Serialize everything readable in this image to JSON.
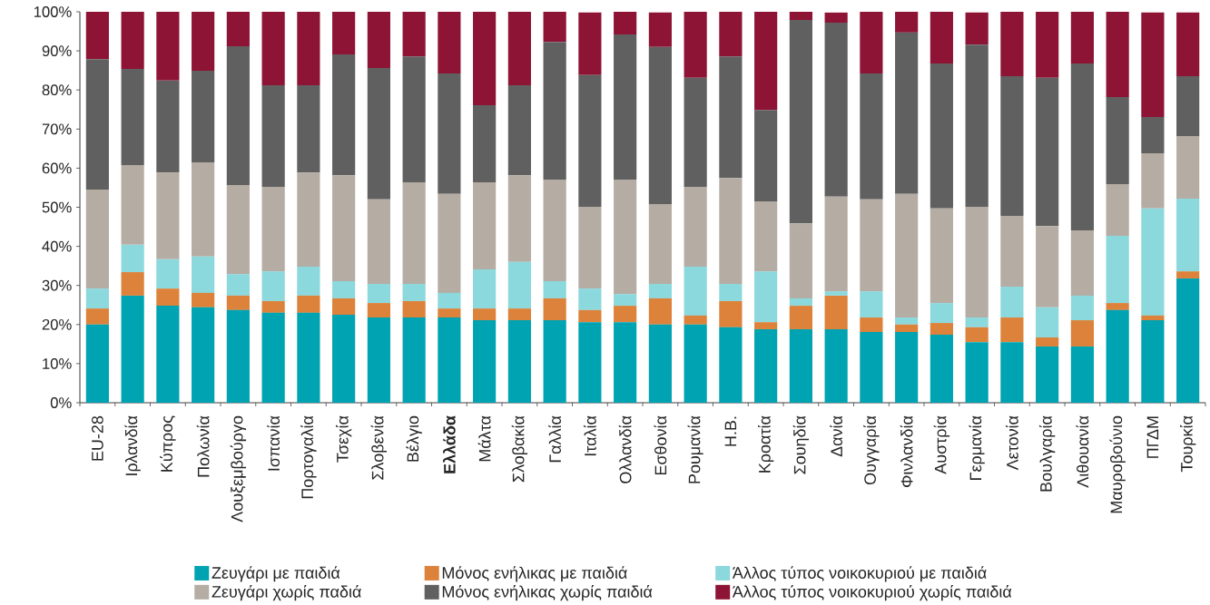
{
  "chart_data": {
    "type": "bar",
    "stacked": true,
    "categories": [
      "EU-28",
      "Ιρλανδία",
      "Κύπρος",
      "Πολωνία",
      "Λουξεμβούργο",
      "Ισπανία",
      "Πορτογαλία",
      "Τσεχία",
      "Σλοβενία",
      "Βέλγιο",
      "**Ελλάδα**",
      "Μάλτα",
      "Σλοβακία",
      "Γαλλία",
      "Ιταλία",
      "Ολλανδία",
      "Εσθονία",
      "Ρουμανία",
      "Η.Β.",
      "Κροατία",
      "Σουηδία",
      "Δανία",
      "Ουγγαρία",
      "Φινλανδία",
      "Αυστρία",
      "Γερμανία",
      "Λετονία",
      "Βουλγαρία",
      "Λιθουανία",
      "Μαυροβούνιο",
      "ΠΓΔΜ",
      "Τουρκία"
    ],
    "series": [
      {
        "name": "Ζευγάρι με παιδιά",
        "color": "#00a3b1",
        "values": [
          20.0,
          27.4,
          24.8,
          24.4,
          23.7,
          23.0,
          23.0,
          22.5,
          21.8,
          21.8,
          21.8,
          21.1,
          21.1,
          21.1,
          20.6,
          20.6,
          20.0,
          20.0,
          19.3,
          18.8,
          18.8,
          18.8,
          18.1,
          18.1,
          17.4,
          15.5,
          15.5,
          14.4,
          14.4,
          23.7,
          21.1,
          31.8
        ]
      },
      {
        "name": "Μόνος ενήλικας με παιδιά",
        "color": "#dc823a",
        "values": [
          4.1,
          6.0,
          4.4,
          3.7,
          3.7,
          3.0,
          4.4,
          4.2,
          3.7,
          4.2,
          2.3,
          3.0,
          3.0,
          5.6,
          3.1,
          4.2,
          6.7,
          2.3,
          6.7,
          1.8,
          6.0,
          8.6,
          3.7,
          1.9,
          3.0,
          3.8,
          6.3,
          2.3,
          6.7,
          1.8,
          1.2,
          1.8
        ]
      },
      {
        "name": "Άλλος τύπος νοικοκυριού με παιδιά",
        "color": "#8bd8dd",
        "values": [
          5.1,
          7.0,
          7.5,
          9.3,
          5.5,
          7.6,
          7.4,
          4.4,
          4.9,
          4.4,
          4.0,
          10.0,
          11.9,
          4.4,
          5.5,
          3.0,
          3.7,
          12.5,
          4.4,
          13.0,
          1.9,
          1.1,
          6.7,
          1.8,
          5.1,
          2.5,
          7.9,
          7.7,
          6.3,
          17.2,
          27.4,
          18.6
        ]
      },
      {
        "name": "Ζευγάρι χωρίς παδιά",
        "color": "#b5aca3",
        "values": [
          25.3,
          20.4,
          22.2,
          24.1,
          22.8,
          21.6,
          24.1,
          27.1,
          21.6,
          26.0,
          25.3,
          22.3,
          22.2,
          26.0,
          20.9,
          29.3,
          20.4,
          20.4,
          27.1,
          17.9,
          19.2,
          24.2,
          23.5,
          31.6,
          24.2,
          28.3,
          18.1,
          20.8,
          16.7,
          13.2,
          14.1,
          16.0
        ]
      },
      {
        "name": "Μόνος ενήλικας χωρίς παιδιά",
        "color": "#606060",
        "values": [
          33.4,
          24.6,
          23.5,
          23.4,
          35.5,
          26.0,
          22.3,
          30.9,
          33.6,
          32.2,
          30.8,
          19.7,
          23.0,
          35.2,
          33.7,
          37.1,
          40.2,
          27.9,
          31.1,
          23.4,
          52.0,
          44.5,
          32.2,
          41.3,
          37.1,
          41.5,
          35.7,
          37.9,
          42.7,
          22.3,
          9.3,
          15.3
        ]
      },
      {
        "name": "Άλλος τύπος νοικοκυριού χωρίς παιδιά",
        "color": "#8e1435",
        "values": [
          12.1,
          14.6,
          17.6,
          15.1,
          8.8,
          18.8,
          18.8,
          10.9,
          14.4,
          11.4,
          15.8,
          23.9,
          18.8,
          7.7,
          16.0,
          5.8,
          8.8,
          16.9,
          11.4,
          25.1,
          2.1,
          2.6,
          15.8,
          5.3,
          13.2,
          8.2,
          16.5,
          16.9,
          13.2,
          21.8,
          26.7,
          16.3
        ]
      }
    ],
    "ylim": [
      0,
      100
    ],
    "yticks": [
      {
        "value": 0,
        "label": "0%"
      },
      {
        "value": 10,
        "label": "10%"
      },
      {
        "value": 20,
        "label": "20%"
      },
      {
        "value": 30,
        "label": "30%"
      },
      {
        "value": 40,
        "label": "40%"
      },
      {
        "value": 50,
        "label": "50%"
      },
      {
        "value": 60,
        "label": "60%"
      },
      {
        "value": 70,
        "label": "70%"
      },
      {
        "value": 80,
        "label": "80%"
      },
      {
        "value": 90,
        "label": "90%"
      },
      {
        "value": 100,
        "label": "100%"
      }
    ],
    "legend": "bottom"
  }
}
